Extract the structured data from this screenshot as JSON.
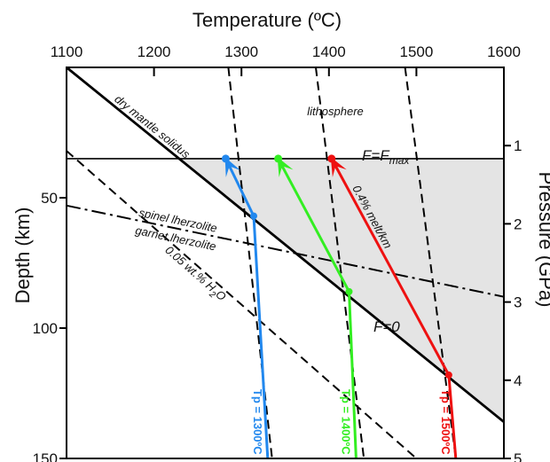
{
  "chart_data": {
    "type": "line",
    "title": "",
    "top_axis": {
      "label": "Temperature (ºC)",
      "ticks": [
        "1100",
        "1200",
        "1300",
        "1400",
        "1500",
        "1600"
      ],
      "range": [
        1100,
        1600
      ]
    },
    "left_axis": {
      "label": "Depth (km)",
      "ticks": [
        "50",
        "100",
        "150"
      ],
      "range": [
        0,
        150
      ],
      "inverted": true
    },
    "right_axis": {
      "label": "Pressure (GPa)",
      "ticks": [
        "1",
        "2",
        "3",
        "4",
        "5"
      ],
      "range": [
        0,
        5
      ],
      "inverted": true
    },
    "grid": false,
    "melt_region_color": "#e4e4e4",
    "lines": [
      {
        "id": "dry-mantle-solidus",
        "label": "dry mantle solidus",
        "style": "solid",
        "color": "#000000",
        "points": [
          [
            1100,
            0
          ],
          [
            1600,
            136
          ]
        ]
      },
      {
        "id": "wet-solidus",
        "label": "0.05 wt.% H",
        "label_sub": "2",
        "label_end": "O",
        "style": "dashed",
        "color": "#000000",
        "points": [
          [
            1100,
            32
          ],
          [
            1500,
            150
          ]
        ]
      },
      {
        "id": "spinel-garnet-transition",
        "label_top": "spinel lherzolite",
        "label_bottom": "garnet lherzolite",
        "style": "dashdot",
        "color": "#000000",
        "points": [
          [
            1100,
            53
          ],
          [
            1600,
            88
          ]
        ]
      },
      {
        "id": "lithosphere-base",
        "label": "F=F",
        "label_sub": "max",
        "style": "solid",
        "color": "#000000",
        "points": [
          [
            1100,
            35
          ],
          [
            1600,
            35
          ]
        ]
      },
      {
        "id": "adiabat-1300",
        "style": "dashed",
        "color": "#000000",
        "points": [
          [
            1285,
            0
          ],
          [
            1335,
            150
          ]
        ]
      },
      {
        "id": "adiabat-1400",
        "style": "dashed",
        "color": "#000000",
        "points": [
          [
            1385,
            0
          ],
          [
            1440,
            150
          ]
        ]
      },
      {
        "id": "adiabat-1500",
        "style": "dashed",
        "color": "#000000",
        "points": [
          [
            1487,
            0
          ],
          [
            1545,
            150
          ]
        ]
      }
    ],
    "series": [
      {
        "name": "Tp = 1300ºC",
        "color": "#2288ee",
        "points": [
          [
            1330,
            150
          ],
          [
            1314,
            57
          ],
          [
            1282,
            35
          ]
        ]
      },
      {
        "name": "Tp = 1400ºC",
        "color": "#33ee22",
        "points": [
          [
            1431,
            150
          ],
          [
            1423,
            86
          ],
          [
            1342,
            35
          ]
        ]
      },
      {
        "name": "Tp = 1500ºC",
        "color": "#ee1111",
        "points": [
          [
            1545,
            150
          ],
          [
            1537,
            118
          ],
          [
            1403,
            35
          ]
        ]
      }
    ],
    "annotations": {
      "lithosphere": "lithosphere",
      "melt_rate": "0.4% melt/km",
      "f_zero": "F=0"
    }
  }
}
